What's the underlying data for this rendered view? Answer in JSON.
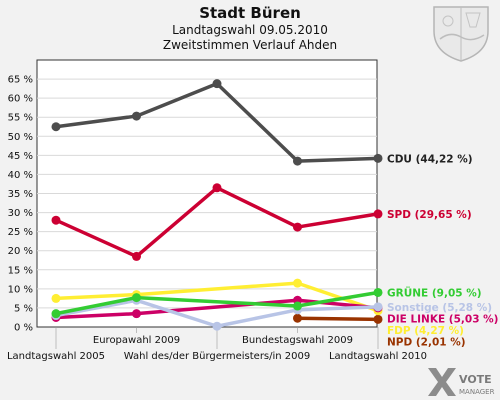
{
  "header": {
    "title": "Stadt Büren",
    "subtitle1": "Landtagswahl 09.05.2010",
    "subtitle2": "Zweitstimmen Verlauf Ahden"
  },
  "brand": {
    "logo_text_top": "VOTE",
    "logo_text_bottom": "MANAGER"
  },
  "chart_data": {
    "type": "line",
    "title": "Stadt Büren",
    "subtitle": "Landtagswahl 09.05.2010 — Zweitstimmen Verlauf Ahden",
    "xlabel": "",
    "ylabel": "",
    "ylim": [
      0,
      70
    ],
    "y_ticks": [
      "0 %",
      "5 %",
      "10 %",
      "15 %",
      "20 %",
      "25 %",
      "30 %",
      "35 %",
      "40 %",
      "45 %",
      "50 %",
      "55 %",
      "60 %",
      "65 %"
    ],
    "grid": true,
    "categories": [
      "Landtagswahl 2005",
      "Europawahl 2009",
      "Wahl des/der Bürgermeisters/in 2009",
      "Bundestagswahl 2009",
      "Landtagswahl 2010"
    ],
    "series": [
      {
        "name": "CDU",
        "end_label": "CDU (44,22 %)",
        "color": "#4d4d4d",
        "values": [
          52.5,
          55.3,
          63.8,
          43.5,
          44.22
        ]
      },
      {
        "name": "SPD",
        "end_label": "SPD (29,65 %)",
        "color": "#cc0033",
        "values": [
          28.0,
          18.5,
          36.5,
          26.2,
          29.65
        ]
      },
      {
        "name": "GRÜNE",
        "end_label": "GRÜNE (9,05 %)",
        "color": "#33cc33",
        "values": [
          3.5,
          7.7,
          null,
          5.5,
          9.05
        ]
      },
      {
        "name": "Sonstige",
        "end_label": "Sonstige (5,28 %)",
        "color": "#b8c4e6",
        "values": [
          3.0,
          7.0,
          0.2,
          4.5,
          5.28
        ]
      },
      {
        "name": "DIE LINKE",
        "end_label": "DIE LINKE (5,03 %)",
        "color": "#cc0066",
        "values": [
          2.5,
          3.5,
          null,
          7.0,
          5.03
        ]
      },
      {
        "name": "FDP",
        "end_label": "FDP (4,27 %)",
        "color": "#ffee33",
        "values": [
          7.5,
          8.5,
          null,
          11.5,
          4.27
        ]
      },
      {
        "name": "NPD",
        "end_label": "NPD (2,01 %)",
        "color": "#993300",
        "values": [
          null,
          null,
          null,
          2.3,
          2.01
        ]
      }
    ]
  }
}
